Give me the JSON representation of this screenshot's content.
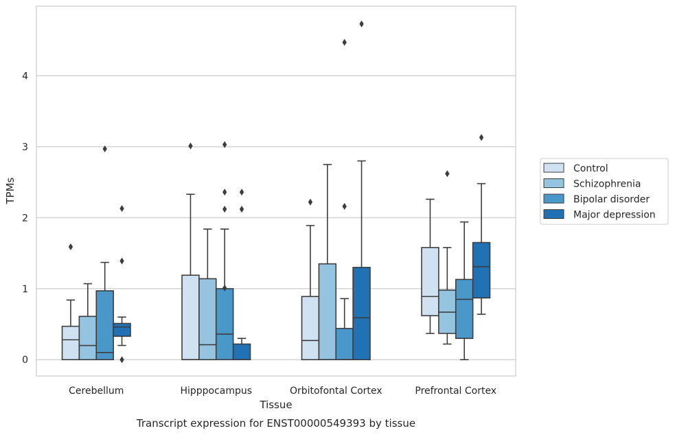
{
  "chart_data": {
    "type": "box",
    "xlabel": "Tissue",
    "ylabel": "TPMs",
    "caption": "Transcript expression for ENST00000549393 by tissue",
    "ylim": [
      -0.23,
      4.98
    ],
    "yticks": [
      0,
      1,
      2,
      3,
      4
    ],
    "grid": "horizontal",
    "legend_position": "right",
    "categories": [
      "Cerebellum",
      "Hipppocampus",
      "Orbitofontal Cortex",
      "Prefrontal Cortex"
    ],
    "series": [
      {
        "name": "Control",
        "color": "#d0e1f2",
        "boxes": [
          {
            "whislo": 0,
            "q1": 0,
            "med": 0.28,
            "q3": 0.47,
            "whishi": 0.84,
            "fliers": [
              1.59
            ]
          },
          {
            "whislo": 0,
            "q1": 0,
            "med": 0,
            "q3": 1.19,
            "whishi": 2.33,
            "fliers": [
              3.01
            ]
          },
          {
            "whislo": 0,
            "q1": 0,
            "med": 0.27,
            "q3": 0.89,
            "whishi": 1.89,
            "fliers": [
              2.22
            ]
          },
          {
            "whislo": 0.37,
            "q1": 0.62,
            "med": 0.89,
            "q3": 1.58,
            "whishi": 2.26,
            "fliers": []
          }
        ]
      },
      {
        "name": "Schizophrenia",
        "color": "#94c4df",
        "boxes": [
          {
            "whislo": 0,
            "q1": 0,
            "med": 0.2,
            "q3": 0.61,
            "whishi": 1.07,
            "fliers": []
          },
          {
            "whislo": 0,
            "q1": 0,
            "med": 0.21,
            "q3": 1.14,
            "whishi": 1.84,
            "fliers": []
          },
          {
            "whislo": 0,
            "q1": 0,
            "med": 0,
            "q3": 1.35,
            "whishi": 2.75,
            "fliers": []
          },
          {
            "whislo": 0.22,
            "q1": 0.37,
            "med": 0.67,
            "q3": 0.98,
            "whishi": 1.58,
            "fliers": [
              2.62
            ]
          }
        ]
      },
      {
        "name": "Bipolar disorder",
        "color": "#4a98c9",
        "boxes": [
          {
            "whislo": 0,
            "q1": 0,
            "med": 0.1,
            "q3": 0.97,
            "whishi": 1.37,
            "fliers": [
              2.97
            ]
          },
          {
            "whislo": 0,
            "q1": 0,
            "med": 0.36,
            "q3": 1.0,
            "whishi": 1.84,
            "fliers": [
              3.03,
              2.36,
              2.12,
              1.01
            ]
          },
          {
            "whislo": 0,
            "q1": 0,
            "med": 0,
            "q3": 0.44,
            "whishi": 0.86,
            "fliers": [
              4.47,
              2.16
            ]
          },
          {
            "whislo": 0,
            "q1": 0.3,
            "med": 0.85,
            "q3": 1.13,
            "whishi": 1.94,
            "fliers": []
          }
        ]
      },
      {
        "name": "Major depression",
        "color": "#2171b5",
        "boxes": [
          {
            "whislo": 0.2,
            "q1": 0.33,
            "med": 0.46,
            "q3": 0.51,
            "whishi": 0.6,
            "fliers": [
              2.13,
              1.39,
              0
            ]
          },
          {
            "whislo": 0,
            "q1": 0,
            "med": 0,
            "q3": 0.22,
            "whishi": 0.3,
            "fliers": [
              2.36,
              2.12
            ]
          },
          {
            "whislo": 0,
            "q1": 0,
            "med": 0.59,
            "q3": 1.3,
            "whishi": 2.8,
            "fliers": [
              4.73
            ]
          },
          {
            "whislo": 0.64,
            "q1": 0.87,
            "med": 1.31,
            "q3": 1.65,
            "whishi": 2.48,
            "fliers": [
              3.13
            ]
          }
        ]
      }
    ]
  }
}
